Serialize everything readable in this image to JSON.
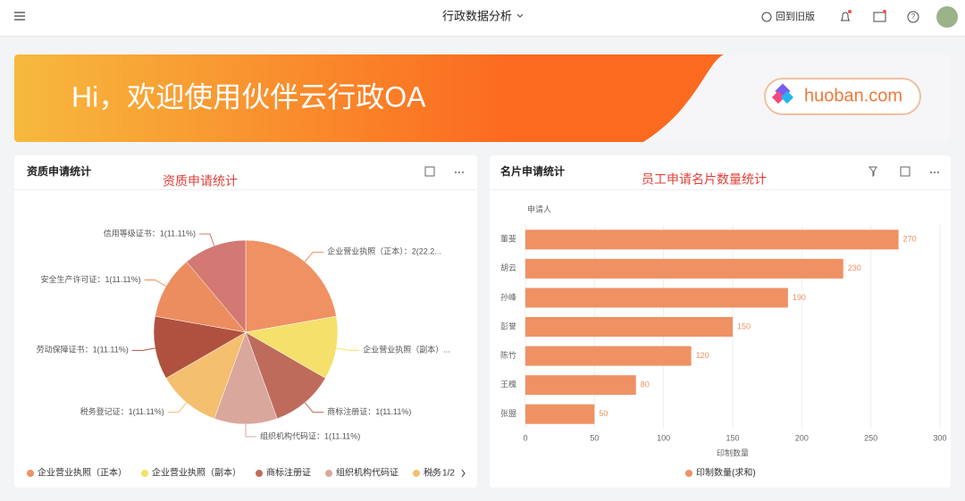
{
  "header": {
    "title": "行政数据分析",
    "old_version": "回到旧版"
  },
  "banner": {
    "greeting": "Hi，欢迎使用伙伴云行政OA",
    "logo": "huoban.com"
  },
  "chart_data": [
    {
      "type": "pie",
      "title": "资质申请统计",
      "annotation": "资质申请统计",
      "values": [
        2,
        1,
        1,
        1,
        1,
        1,
        1,
        1
      ],
      "labels": [
        "企业营业执照（正本）：2(22.2...",
        "企业营业执照（副本）...",
        "商标注册证：1(11.11%)",
        "组织机构代码证：1(11.11%)",
        "税务登记证：1(11.11%)",
        "劳动保障证书：1(11.11%)",
        "安全生产许可证：1(11.11%)",
        "信用等级证书：1(11.11%)"
      ],
      "colors": [
        "#ef9163",
        "#f4e06a",
        "#bf6b5b",
        "#d9a79c",
        "#f4bf6f",
        "#b0513f",
        "#ec8d5f",
        "#d37872"
      ],
      "legend": [
        "企业营业执照（正本）",
        "企业营业执照（副本）",
        "商标注册证",
        "组织机构代码证",
        "税务"
      ],
      "legend_page": "1/2"
    },
    {
      "type": "bar",
      "orientation": "horizontal",
      "title": "名片申请统计",
      "annotation": "员工申请名片数量统计",
      "y_label": "申请人",
      "x_label": "印制数量",
      "categories": [
        "董斐",
        "胡云",
        "孙峰",
        "彭誉",
        "陈竹",
        "王槐",
        "张盟"
      ],
      "series": [
        {
          "name": "印制数量(求和)",
          "color": "#ef9163",
          "values": [
            270,
            230,
            190,
            150,
            120,
            80,
            50
          ]
        }
      ],
      "xlim": [
        0,
        300
      ],
      "xticks": [
        0,
        50,
        100,
        150,
        200,
        250,
        300
      ],
      "grid": true
    }
  ]
}
